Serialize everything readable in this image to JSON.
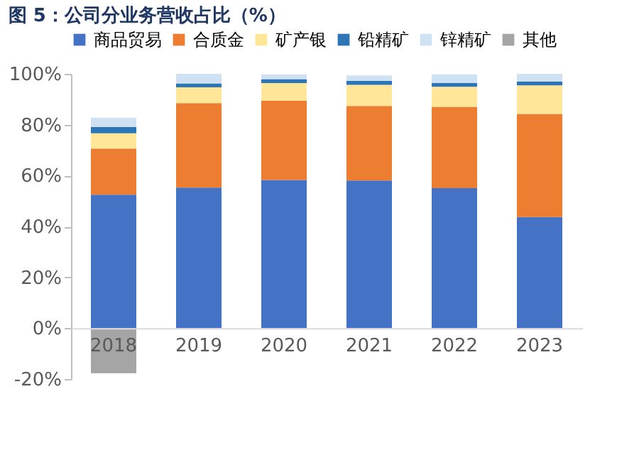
{
  "chart_data": {
    "type": "bar",
    "stacked": true,
    "title": "图 5：公司分业务营收占比（%）",
    "categories": [
      "2018",
      "2019",
      "2020",
      "2021",
      "2022",
      "2023"
    ],
    "series": [
      {
        "name": "商品贸易",
        "color": "#4472c4",
        "values": [
          52.5,
          55.3,
          58.3,
          58.1,
          55.1,
          43.7
        ]
      },
      {
        "name": "合质金",
        "color": "#ed7d31",
        "values": [
          18.1,
          33.2,
          31.1,
          29.3,
          31.9,
          40.5
        ]
      },
      {
        "name": "矿产银",
        "color": "#ffe699",
        "values": [
          6.0,
          6.2,
          7.0,
          8.3,
          7.9,
          11.3
        ]
      },
      {
        "name": "铅精矿",
        "color": "#2e75b6",
        "values": [
          2.5,
          1.5,
          1.5,
          1.5,
          1.5,
          1.5
        ]
      },
      {
        "name": "锌精矿",
        "color": "#cfe2f3",
        "values": [
          3.7,
          3.8,
          1.9,
          2.2,
          3.4,
          3.0
        ]
      },
      {
        "name": "其他",
        "color": "#a5a5a5",
        "values": [
          -17.7,
          null,
          null,
          null,
          null,
          null
        ]
      }
    ],
    "ylim": [
      -20,
      100
    ],
    "yticks": [
      {
        "value": -20,
        "label": "-20%"
      },
      {
        "value": 0,
        "label": "0%"
      },
      {
        "value": 20,
        "label": "20%"
      },
      {
        "value": 40,
        "label": "40%"
      },
      {
        "value": 60,
        "label": "60%"
      },
      {
        "value": 80,
        "label": "80%"
      },
      {
        "value": 100,
        "label": "100%"
      }
    ],
    "grid": false,
    "legend": "top"
  }
}
